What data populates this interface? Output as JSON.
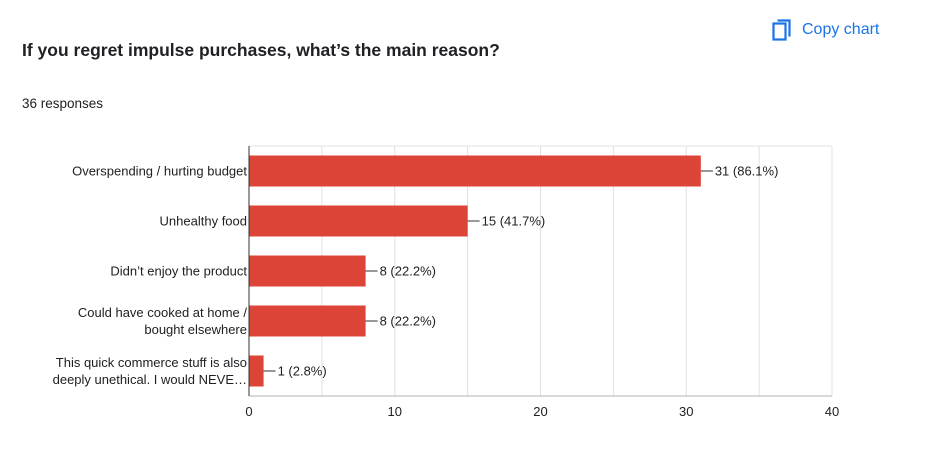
{
  "header": {
    "title": "If you regret impulse purchases, what’s the main reason?",
    "responses": "36 responses",
    "copy_label": "Copy chart",
    "copy_icon": "copy-icon"
  },
  "colors": {
    "bar": "#dc4437",
    "accent": "#1a73e8",
    "grid": "#e0e0e0",
    "axis": "#333333"
  },
  "chart_data": {
    "type": "bar",
    "orientation": "horizontal",
    "categories": [
      [
        "Overspending / hurting budget"
      ],
      [
        "Unhealthy food"
      ],
      [
        "Didn’t enjoy the product"
      ],
      [
        "Could have cooked at home /",
        "bought elsewhere"
      ],
      [
        "This quick commerce stuff is also",
        "deeply unethical. I would NEVE…"
      ]
    ],
    "values": [
      31,
      15,
      8,
      8,
      1
    ],
    "data_labels": [
      "31 (86.1%)",
      "15 (41.7%)",
      "8 (22.2%)",
      "8 (22.2%)",
      "1 (2.8%)"
    ],
    "xlim": [
      0,
      40
    ],
    "xticks": [
      0,
      10,
      20,
      30,
      40
    ],
    "grid": true,
    "legend": "none"
  }
}
